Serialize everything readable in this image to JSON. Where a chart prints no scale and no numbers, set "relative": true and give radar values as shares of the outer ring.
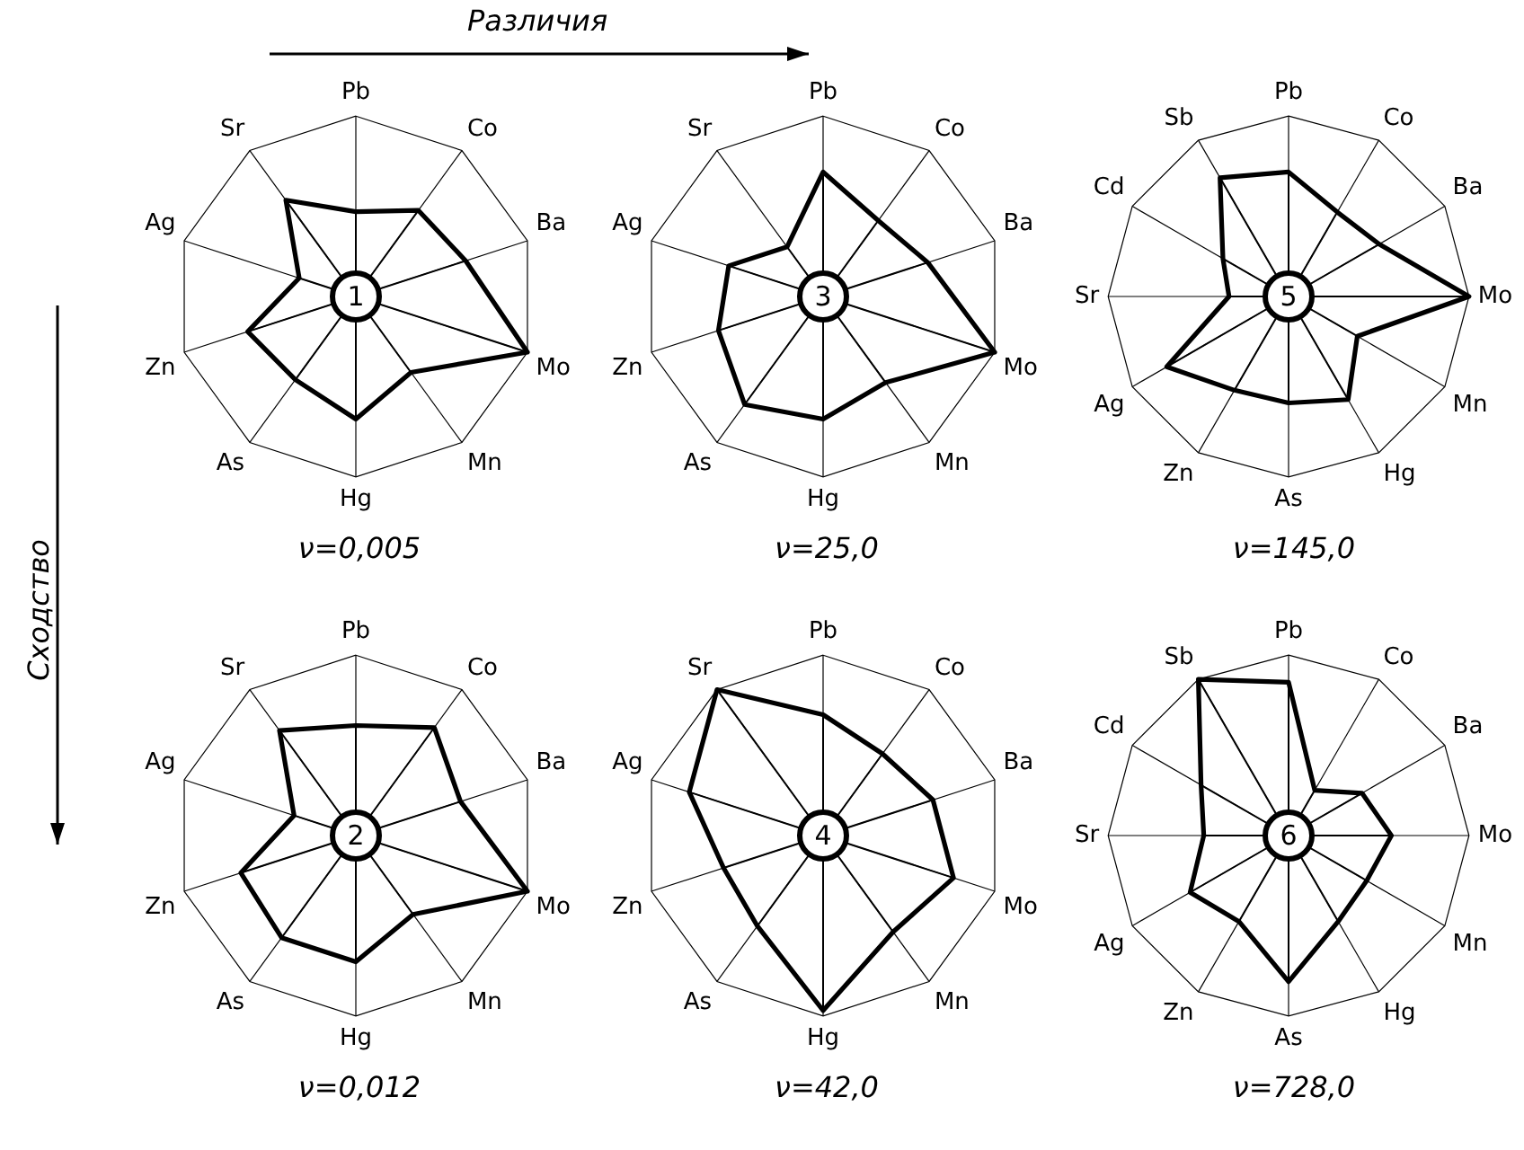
{
  "chart_data": [
    {
      "type": "radar",
      "title": "ν=0,005",
      "subtitle": "1",
      "relative": true,
      "marker": "none",
      "annotations": [
        "Различия",
        "Сходство"
      ],
      "categories": [
        "Pb",
        "Co",
        "Ba",
        "Mo",
        "Mn",
        "Hg",
        "As",
        "Zn",
        "Ag",
        "Sr"
      ],
      "series": [
        {
          "color": "#000000",
          "values": [
            0.47,
            0.59,
            0.64,
            1,
            0.52,
            0.68,
            0.57,
            0.63,
            0.33,
            0.66
          ]
        }
      ]
    },
    {
      "type": "radar",
      "title": "ν=25,0",
      "subtitle": "3",
      "relative": true,
      "marker": "none",
      "categories": [
        "Pb",
        "Co",
        "Ba",
        "Mo",
        "Mn",
        "Hg",
        "As",
        "Zn",
        "Ag",
        "Sr"
      ],
      "series": [
        {
          "color": "#000000",
          "values": [
            0.69,
            0.52,
            0.61,
            1,
            0.59,
            0.68,
            0.74,
            0.61,
            0.55,
            0.34
          ]
        }
      ]
    },
    {
      "type": "radar",
      "title": "ν=145,0",
      "subtitle": "5",
      "relative": true,
      "marker": "none",
      "categories": [
        "Pb",
        "Co",
        "Ba",
        "Mo",
        "Mn",
        "Hg",
        "As",
        "Zn",
        "Ag",
        "Sr",
        "Cd",
        "Sb"
      ],
      "series": [
        {
          "color": "#000000",
          "values": [
            0.69,
            0.54,
            0.58,
            1,
            0.44,
            0.66,
            0.59,
            0.6,
            0.78,
            0.33,
            0.42,
            0.76
          ]
        }
      ]
    },
    {
      "type": "radar",
      "title": "ν=0,012",
      "subtitle": "2",
      "relative": true,
      "marker": "none",
      "categories": [
        "Pb",
        "Co",
        "Ba",
        "Mo",
        "Mn",
        "Hg",
        "As",
        "Zn",
        "Ag",
        "Sr"
      ],
      "series": [
        {
          "color": "#000000",
          "values": [
            0.61,
            0.74,
            0.61,
            1,
            0.54,
            0.7,
            0.7,
            0.67,
            0.36,
            0.72
          ]
        }
      ]
    },
    {
      "type": "radar",
      "title": "ν=42,0",
      "subtitle": "4",
      "relative": true,
      "marker": "none",
      "categories": [
        "Pb",
        "Co",
        "Ba",
        "Mo",
        "Mn",
        "Hg",
        "As",
        "Zn",
        "Ag",
        "Sr"
      ],
      "series": [
        {
          "color": "#000000",
          "values": [
            0.67,
            0.56,
            0.64,
            0.76,
            0.66,
            0.97,
            0.62,
            0.58,
            0.78,
            1
          ]
        }
      ]
    },
    {
      "type": "radar",
      "title": "ν=728,0",
      "subtitle": "6",
      "relative": true,
      "marker": "none",
      "categories": [
        "Pb",
        "Co",
        "Ba",
        "Mo",
        "Mn",
        "Hg",
        "As",
        "Zn",
        "Ag",
        "Sr",
        "Cd",
        "Sb"
      ],
      "series": [
        {
          "color": "#000000",
          "values": [
            0.85,
            0.29,
            0.47,
            0.57,
            0.5,
            0.55,
            0.81,
            0.55,
            0.63,
            0.47,
            0.56,
            1
          ]
        }
      ]
    }
  ]
}
